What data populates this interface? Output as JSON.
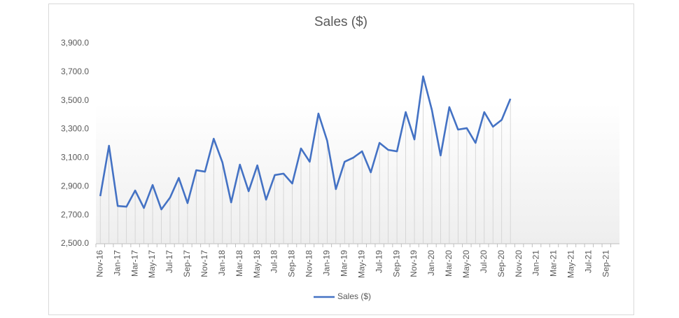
{
  "chart_data": {
    "type": "line",
    "title": "Sales ($)",
    "categories": [
      "Nov-16",
      null,
      "Jan-17",
      null,
      "Mar-17",
      null,
      "May-17",
      null,
      "Jul-17",
      null,
      "Sep-17",
      null,
      "Nov-17",
      null,
      "Jan-18",
      null,
      "Mar-18",
      null,
      "May-18",
      null,
      "Jul-18",
      null,
      "Sep-18",
      null,
      "Nov-18",
      null,
      "Jan-19",
      null,
      "Mar-19",
      null,
      "May-19",
      null,
      "Jul-19",
      null,
      "Sep-19",
      null,
      "Nov-19",
      null,
      "Jan-20",
      null,
      "Mar-20",
      null,
      "May-20",
      null,
      "Jul-20",
      null,
      "Sep-20",
      null,
      "Nov-20",
      null,
      "Jan-21",
      null,
      "Mar-21",
      null,
      "May-21",
      null,
      "Jul-21",
      null,
      "Sep-21",
      null
    ],
    "series": [
      {
        "name": "Sales ($)",
        "color": "#4472c4",
        "values": [
          2833,
          3185,
          2764,
          2759,
          2872,
          2750,
          2911,
          2740,
          2823,
          2960,
          2784,
          3014,
          3004,
          3234,
          3068,
          2789,
          3053,
          2867,
          3048,
          2808,
          2980,
          2990,
          2921,
          3166,
          3073,
          3410,
          3220,
          2882,
          3073,
          3102,
          3146,
          2999,
          3205,
          3156,
          3146,
          3420,
          3229,
          3670,
          3435,
          3117,
          3455,
          3298,
          3308,
          3205,
          3420,
          3318,
          3366,
          3513,
          null,
          null,
          null,
          null,
          null,
          null,
          null,
          null,
          null,
          null,
          null,
          null
        ]
      }
    ],
    "ylim": [
      2500,
      3900
    ],
    "yticks": [
      {
        "value": 2500,
        "label": "2,500.0"
      },
      {
        "value": 2700,
        "label": "2,700.0"
      },
      {
        "value": 2900,
        "label": "2,900.0"
      },
      {
        "value": 3100,
        "label": "3,100.0"
      },
      {
        "value": 3300,
        "label": "3,300.0"
      },
      {
        "value": 3500,
        "label": "3,500.0"
      },
      {
        "value": 3700,
        "label": "3,700.0"
      },
      {
        "value": 3900,
        "label": "3,900.0"
      }
    ],
    "drop_lines": true,
    "legend": "bottom"
  }
}
